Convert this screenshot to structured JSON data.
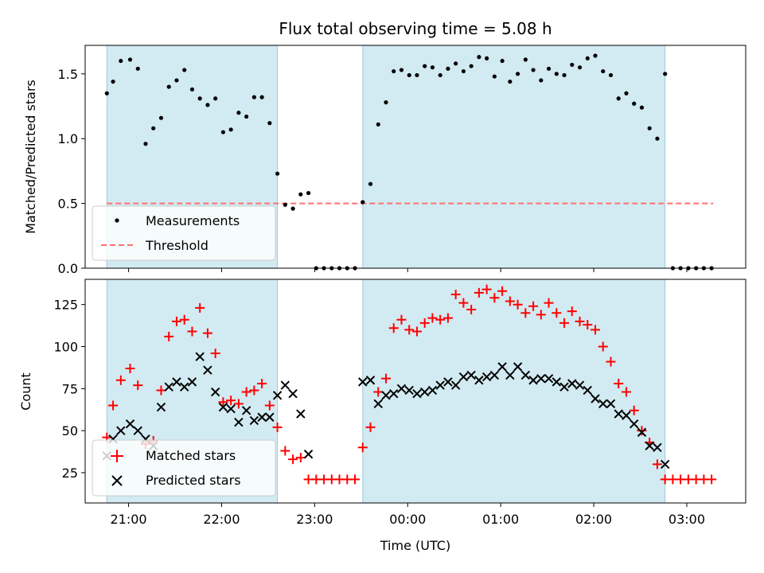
{
  "chart_data": {
    "title": "Flux total observing time = 5.08 h",
    "x_tick_labels": [
      "21:00",
      "22:00",
      "23:00",
      "00:00",
      "01:00",
      "02:00",
      "03:00"
    ],
    "xlabel": "Time (UTC)",
    "colors": {
      "shade": "#add8e6",
      "measurements": "#000000",
      "threshold": "#ff7070",
      "matched": "#ff0000",
      "predicted": "#000000"
    },
    "observing_windows": [
      [
        "20:46",
        "22:36"
      ],
      [
        "23:31",
        "02:46"
      ]
    ],
    "panels": [
      {
        "type": "scatter",
        "ylabel": "Matched/Predicted stars",
        "ylim": [
          0,
          1.72
        ],
        "yticks": [
          0.0,
          0.5,
          1.0,
          1.5
        ],
        "ytick_labels": [
          "0.0",
          "0.5",
          "1.0",
          "1.5"
        ],
        "legend": {
          "placement": "lower-left",
          "entries": [
            "Measurements",
            "Threshold"
          ]
        },
        "threshold": {
          "name": "Threshold",
          "value": 0.5,
          "x_range": [
            "20:46",
            "03:17"
          ]
        },
        "series": [
          {
            "name": "Measurements",
            "x": [
              "20:46",
              "20:50",
              "20:55",
              "21:01",
              "21:06",
              "21:11",
              "21:16",
              "21:21",
              "21:26",
              "21:31",
              "21:36",
              "21:41",
              "21:46",
              "21:51",
              "21:56",
              "22:01",
              "22:06",
              "22:11",
              "22:16",
              "22:21",
              "22:26",
              "22:31",
              "22:36",
              "22:41",
              "22:46",
              "22:51",
              "22:56",
              "23:01",
              "23:06",
              "23:11",
              "23:16",
              "23:21",
              "23:26",
              "23:31",
              "23:36",
              "23:41",
              "23:46",
              "23:51",
              "23:56",
              "00:01",
              "00:06",
              "00:11",
              "00:16",
              "00:21",
              "00:26",
              "00:31",
              "00:36",
              "00:41",
              "00:46",
              "00:51",
              "00:56",
              "01:01",
              "01:06",
              "01:11",
              "01:16",
              "01:21",
              "01:26",
              "01:31",
              "01:36",
              "01:41",
              "01:46",
              "01:51",
              "01:56",
              "02:01",
              "02:06",
              "02:11",
              "02:16",
              "02:21",
              "02:26",
              "02:31",
              "02:36",
              "02:41",
              "02:46",
              "02:51",
              "02:56",
              "03:01",
              "03:06",
              "03:11",
              "03:16"
            ],
            "values": [
              1.35,
              1.44,
              1.6,
              1.61,
              1.54,
              0.96,
              1.08,
              1.16,
              1.4,
              1.45,
              1.53,
              1.38,
              1.31,
              1.26,
              1.31,
              1.05,
              1.07,
              1.2,
              1.17,
              1.32,
              1.32,
              1.12,
              0.73,
              0.49,
              0.46,
              0.57,
              0.58,
              0.0,
              0.0,
              0.0,
              0.0,
              0.0,
              0.0,
              0.51,
              0.65,
              1.11,
              1.28,
              1.52,
              1.53,
              1.49,
              1.49,
              1.56,
              1.55,
              1.49,
              1.54,
              1.58,
              1.52,
              1.56,
              1.63,
              1.62,
              1.48,
              1.6,
              1.44,
              1.5,
              1.61,
              1.53,
              1.45,
              1.54,
              1.5,
              1.49,
              1.57,
              1.55,
              1.62,
              1.64,
              1.52,
              1.49,
              1.31,
              1.35,
              1.27,
              1.24,
              1.08,
              1.0,
              1.5,
              0.0,
              0.0,
              0.0,
              0.0,
              0.0,
              0.0
            ]
          }
        ]
      },
      {
        "type": "scatter",
        "ylabel": "Count",
        "ylim": [
          7,
          140
        ],
        "yticks": [
          25,
          50,
          75,
          100,
          125
        ],
        "ytick_labels": [
          "25",
          "50",
          "75",
          "100",
          "125"
        ],
        "legend": {
          "placement": "lower-left",
          "entries": [
            "Matched stars",
            "Predicted stars"
          ]
        },
        "series": [
          {
            "name": "Matched stars",
            "marker": "plus",
            "x": [
              "20:46",
              "20:50",
              "20:55",
              "21:01",
              "21:06",
              "21:11",
              "21:16",
              "21:21",
              "21:26",
              "21:31",
              "21:36",
              "21:41",
              "21:46",
              "21:51",
              "21:56",
              "22:01",
              "22:06",
              "22:11",
              "22:16",
              "22:21",
              "22:26",
              "22:31",
              "22:36",
              "22:41",
              "22:46",
              "22:51",
              "22:56",
              "23:01",
              "23:06",
              "23:11",
              "23:16",
              "23:21",
              "23:26",
              "23:31",
              "23:36",
              "23:41",
              "23:46",
              "23:51",
              "23:56",
              "00:01",
              "00:06",
              "00:11",
              "00:16",
              "00:21",
              "00:26",
              "00:31",
              "00:36",
              "00:41",
              "00:46",
              "00:51",
              "00:56",
              "01:01",
              "01:06",
              "01:11",
              "01:16",
              "01:21",
              "01:26",
              "01:31",
              "01:36",
              "01:41",
              "01:46",
              "01:51",
              "01:56",
              "02:01",
              "02:06",
              "02:11",
              "02:16",
              "02:21",
              "02:26",
              "02:31",
              "02:36",
              "02:41",
              "02:46",
              "02:51",
              "02:56",
              "03:01",
              "03:06",
              "03:11",
              "03:16"
            ],
            "values": [
              46,
              65,
              80,
              87,
              77,
              42,
              44,
              74,
              106,
              115,
              116,
              109,
              123,
              108,
              96,
              67,
              68,
              66,
              73,
              74,
              78,
              65,
              52,
              38,
              33,
              34,
              21,
              21,
              21,
              21,
              21,
              21,
              21,
              40,
              52,
              73,
              81,
              111,
              116,
              110,
              109,
              114,
              117,
              116,
              117,
              131,
              126,
              122,
              132,
              134,
              129,
              133,
              127,
              125,
              120,
              124,
              119,
              126,
              120,
              114,
              121,
              115,
              113,
              110,
              100,
              91,
              78,
              73,
              62,
              50,
              43,
              30,
              21,
              21,
              21,
              21,
              21,
              21,
              21
            ]
          },
          {
            "name": "Predicted stars",
            "marker": "x",
            "x": [
              "20:46",
              "20:50",
              "20:55",
              "21:01",
              "21:06",
              "21:11",
              "21:16",
              "21:21",
              "21:26",
              "21:31",
              "21:36",
              "21:41",
              "21:46",
              "21:51",
              "21:56",
              "22:01",
              "22:06",
              "22:11",
              "22:16",
              "22:21",
              "22:26",
              "22:31",
              "22:36",
              "22:41",
              "22:46",
              "22:51",
              "22:56",
              "23:31",
              "23:36",
              "23:41",
              "23:46",
              "23:51",
              "23:56",
              "00:01",
              "00:06",
              "00:11",
              "00:16",
              "00:21",
              "00:26",
              "00:31",
              "00:36",
              "00:41",
              "00:46",
              "00:51",
              "00:56",
              "01:01",
              "01:06",
              "01:11",
              "01:16",
              "01:21",
              "01:26",
              "01:31",
              "01:36",
              "01:41",
              "01:46",
              "01:51",
              "01:56",
              "02:01",
              "02:06",
              "02:11",
              "02:16",
              "02:21",
              "02:26",
              "02:31",
              "02:36",
              "02:41",
              "02:46"
            ],
            "values": [
              35,
              45,
              50,
              54,
              50,
              45,
              41,
              64,
              76,
              79,
              76,
              79,
              94,
              86,
              73,
              64,
              63,
              55,
              62,
              56,
              58,
              58,
              71,
              77,
              72,
              60,
              36,
              79,
              80,
              66,
              71,
              72,
              75,
              74,
              72,
              73,
              74,
              77,
              79,
              77,
              82,
              83,
              80,
              82,
              83,
              88,
              83,
              88,
              83,
              80,
              81,
              81,
              79,
              76,
              78,
              77,
              74,
              69,
              66,
              66,
              60,
              59,
              54,
              49,
              41,
              40,
              30
            ]
          }
        ]
      }
    ]
  }
}
